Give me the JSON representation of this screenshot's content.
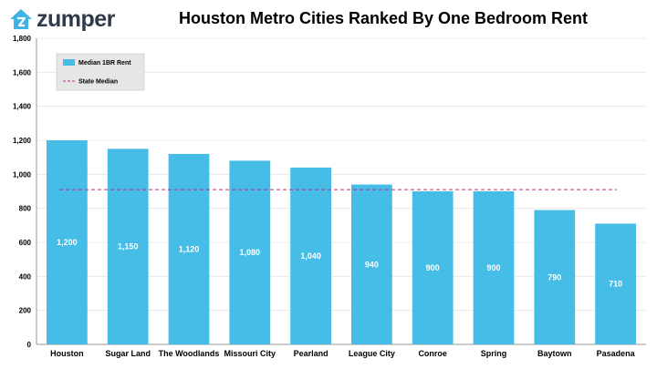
{
  "logo": {
    "text": "zumper",
    "icon": "house-icon"
  },
  "chart_data": {
    "type": "bar",
    "title": "Houston Metro Cities Ranked By One Bedroom Rent",
    "categories": [
      "Houston",
      "Sugar Land",
      "The Woodlands",
      "Missouri City",
      "Pearland",
      "League City",
      "Conroe",
      "Spring",
      "Baytown",
      "Pasadena"
    ],
    "series": [
      {
        "name": "Median 1BR Rent",
        "values": [
          1200,
          1150,
          1120,
          1080,
          1040,
          940,
          900,
          900,
          790,
          710
        ],
        "color": "#45bde6"
      }
    ],
    "data_labels": [
      "1,200",
      "1,150",
      "1,120",
      "1,080",
      "1,040",
      "940",
      "900",
      "900",
      "790",
      "710"
    ],
    "reference_line": {
      "name": "State Median",
      "value": 910,
      "color": "#c02a86",
      "style": "dashed"
    },
    "ylim": [
      0,
      1800
    ],
    "yticks": [
      0,
      200,
      400,
      600,
      800,
      1000,
      1200,
      1400,
      1600,
      1800
    ],
    "ytick_labels": [
      "0",
      "200",
      "400",
      "600",
      "800",
      "1,000",
      "1,200",
      "1,400",
      "1,600",
      "1,800"
    ],
    "xlabel": "",
    "ylabel": "",
    "grid": true,
    "legend_position": "top-left"
  }
}
